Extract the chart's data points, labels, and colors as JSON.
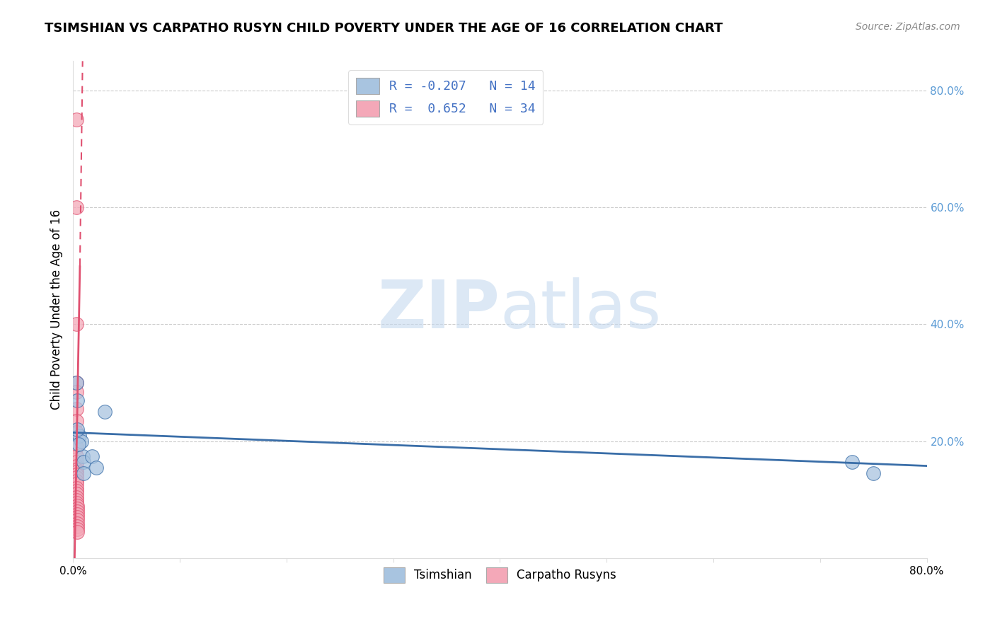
{
  "title": "TSIMSHIAN VS CARPATHO RUSYN CHILD POVERTY UNDER THE AGE OF 16 CORRELATION CHART",
  "source": "Source: ZipAtlas.com",
  "ylabel": "Child Poverty Under the Age of 16",
  "xlim": [
    0.0,
    0.8
  ],
  "ylim": [
    0.0,
    0.85
  ],
  "tsimshian_x": [
    0.003,
    0.004,
    0.006,
    0.008,
    0.009,
    0.01,
    0.01,
    0.018,
    0.022,
    0.03,
    0.73,
    0.75,
    0.004,
    0.005
  ],
  "tsimshian_y": [
    0.3,
    0.27,
    0.21,
    0.2,
    0.175,
    0.165,
    0.145,
    0.175,
    0.155,
    0.25,
    0.165,
    0.145,
    0.22,
    0.195
  ],
  "carpatho_x": [
    0.003,
    0.003,
    0.003,
    0.003,
    0.003,
    0.003,
    0.003,
    0.003,
    0.003,
    0.003,
    0.003,
    0.003,
    0.003,
    0.003,
    0.003,
    0.003,
    0.003,
    0.003,
    0.003,
    0.003,
    0.003,
    0.003,
    0.003,
    0.003,
    0.004,
    0.004,
    0.004,
    0.004,
    0.004,
    0.004,
    0.004,
    0.004,
    0.004,
    0.004
  ],
  "carpatho_y": [
    0.75,
    0.6,
    0.4,
    0.3,
    0.285,
    0.255,
    0.235,
    0.215,
    0.19,
    0.175,
    0.165,
    0.158,
    0.152,
    0.148,
    0.143,
    0.138,
    0.132,
    0.127,
    0.12,
    0.115,
    0.11,
    0.104,
    0.1,
    0.095,
    0.09,
    0.085,
    0.08,
    0.075,
    0.07,
    0.065,
    0.06,
    0.055,
    0.05,
    0.045
  ],
  "tsimshian_color": "#a8c4e0",
  "carpatho_color": "#f4a8b8",
  "tsimshian_line_color": "#3a6ea8",
  "carpatho_line_color": "#e05070",
  "watermark_zip": "ZIP",
  "watermark_atlas": "atlas",
  "grid_color": "#cccccc",
  "title_fontsize": 13,
  "tick_label_color_right": "#5b9bd5",
  "blue_text_color": "#4472c4"
}
